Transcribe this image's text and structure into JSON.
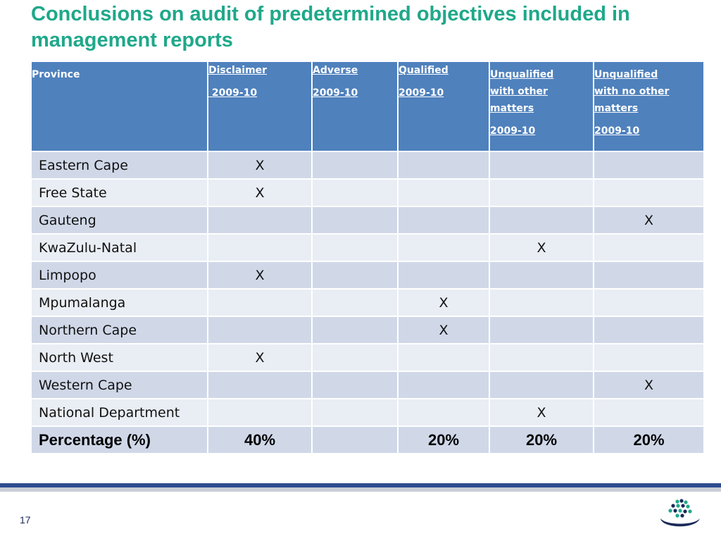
{
  "slide": {
    "title": "Conclusions on audit of predetermined objectives included in management reports",
    "page_number": "17"
  },
  "table": {
    "headers": [
      {
        "name_lines": [
          "Province"
        ],
        "year": ""
      },
      {
        "name_lines": [
          "Disclaimer"
        ],
        "year": " 2009-10"
      },
      {
        "name_lines": [
          "Adverse"
        ],
        "year": "2009-10"
      },
      {
        "name_lines": [
          "Qualified"
        ],
        "year": "2009-10"
      },
      {
        "name_lines": [
          "Unqualified",
          "with other",
          "matters"
        ],
        "year": "2009-10"
      },
      {
        "name_lines": [
          "Unqualified",
          "with no other",
          "matters"
        ],
        "year": "2009-10"
      }
    ],
    "rows": [
      [
        "Eastern Cape",
        "X",
        "",
        "",
        "",
        ""
      ],
      [
        "Free State",
        "X",
        "",
        "",
        "",
        ""
      ],
      [
        "Gauteng",
        "",
        "",
        "",
        "",
        "X"
      ],
      [
        "KwaZulu-Natal",
        "",
        "",
        "",
        "X",
        ""
      ],
      [
        "Limpopo",
        "X",
        "",
        "",
        "",
        ""
      ],
      [
        "Mpumalanga",
        "",
        "",
        "X",
        "",
        ""
      ],
      [
        "Northern Cape",
        "",
        "",
        "X",
        "",
        ""
      ],
      [
        "North West",
        "X",
        "",
        "",
        "",
        ""
      ],
      [
        "Western Cape",
        "",
        "",
        "",
        "",
        "X"
      ],
      [
        "National Department",
        "",
        "",
        "",
        "X",
        ""
      ]
    ],
    "total_row": [
      "Percentage (%)",
      "40%",
      "",
      "20%",
      "20%",
      "20%"
    ]
  },
  "colors": {
    "title": "#1fa88a",
    "header_bg": "#4f81bd",
    "row_odd": "#d0d8e8",
    "row_even": "#e9edf4",
    "footer_bar": "#2e4d8e",
    "logo_navy": "#1b2a5a",
    "logo_teal": "#1fa88a"
  }
}
